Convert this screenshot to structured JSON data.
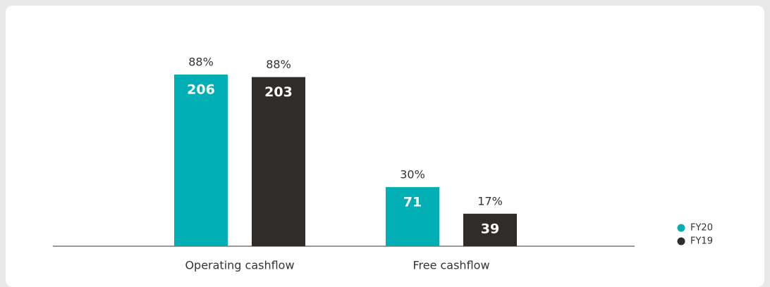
{
  "chart_data": {
    "type": "bar",
    "categories": [
      "Operating cashflow",
      "Free cashflow"
    ],
    "series": [
      {
        "name": "FY20",
        "color": "#00aeb3",
        "values": [
          206,
          71
        ],
        "margin_labels": [
          "88%",
          "30%"
        ]
      },
      {
        "name": "FY19",
        "color": "#302c2a",
        "values": [
          203,
          39
        ],
        "margin_labels": [
          "88%",
          "17%"
        ]
      }
    ],
    "legend": "right"
  }
}
